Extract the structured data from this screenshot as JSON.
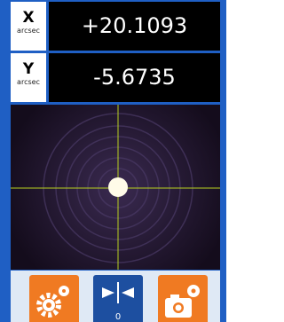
{
  "readouts": [
    {
      "axis": "X",
      "unit": "arcsec",
      "value": "+20.1093"
    },
    {
      "axis": "Y",
      "unit": "arcsec",
      "value": "-5.6735"
    }
  ],
  "toolbar": {
    "zero_button_label": "0"
  }
}
